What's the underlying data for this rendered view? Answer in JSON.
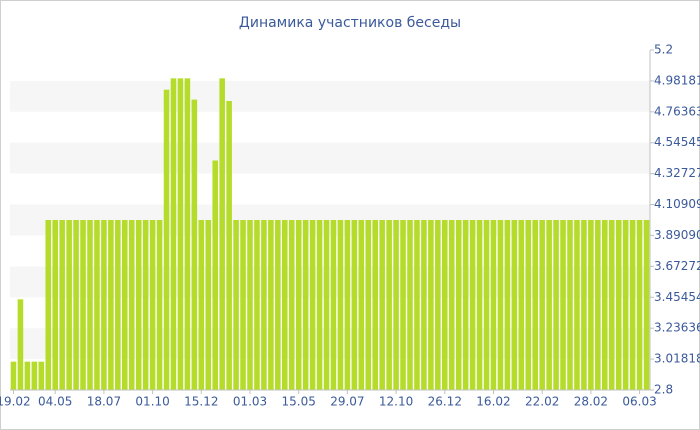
{
  "chart_data": {
    "type": "bar",
    "title": "Динамика участников беседы",
    "color": "#b5dc2a",
    "grid": true,
    "categories": [
      "19.02",
      null,
      null,
      null,
      null,
      null,
      "04.05",
      null,
      null,
      null,
      null,
      null,
      null,
      "18.07",
      null,
      null,
      null,
      null,
      null,
      null,
      "01.10",
      null,
      null,
      null,
      null,
      null,
      null,
      "15.12",
      null,
      null,
      null,
      null,
      null,
      null,
      "01.03",
      null,
      null,
      null,
      null,
      null,
      null,
      "15.05",
      null,
      null,
      null,
      null,
      null,
      null,
      "29.07",
      null,
      null,
      null,
      null,
      null,
      null,
      "12.10",
      null,
      null,
      null,
      null,
      null,
      null,
      "26.12",
      null,
      null,
      null,
      null,
      null,
      null,
      "16.02",
      null,
      null,
      null,
      null,
      null,
      null,
      "22.02",
      null,
      null,
      null,
      null,
      null,
      null,
      "28.02",
      null,
      null,
      null,
      null,
      null,
      null,
      "06.03",
      null
    ],
    "values": [
      3,
      3.44,
      3,
      3,
      3,
      4,
      4,
      4,
      4,
      4,
      4,
      4,
      4,
      4,
      4,
      4,
      4,
      4,
      4,
      4,
      4,
      4,
      4.92,
      5,
      5,
      5,
      4.85,
      4,
      4,
      4.42,
      5,
      4.84,
      4,
      4,
      4,
      4,
      4,
      4,
      4,
      4,
      4,
      4,
      4,
      4,
      4,
      4,
      4,
      4,
      4,
      4,
      4,
      4,
      4,
      4,
      4,
      4,
      4,
      4,
      4,
      4,
      4,
      4,
      4,
      4,
      4,
      4,
      4,
      4,
      4,
      4,
      4,
      4,
      4,
      4,
      4,
      4,
      4,
      4,
      4,
      4,
      4,
      4,
      4,
      4,
      4,
      4,
      4,
      4,
      4,
      4,
      4,
      4
    ],
    "ylim": [
      2.8,
      5.2
    ],
    "yticks": [
      2.8,
      3.01818,
      3.23636,
      3.45454,
      3.67272,
      {
        "value": 3.8909,
        "label": "3.89090"
      },
      4.10909,
      4.32727,
      4.54545,
      4.76363,
      4.98181,
      5.2
    ]
  }
}
